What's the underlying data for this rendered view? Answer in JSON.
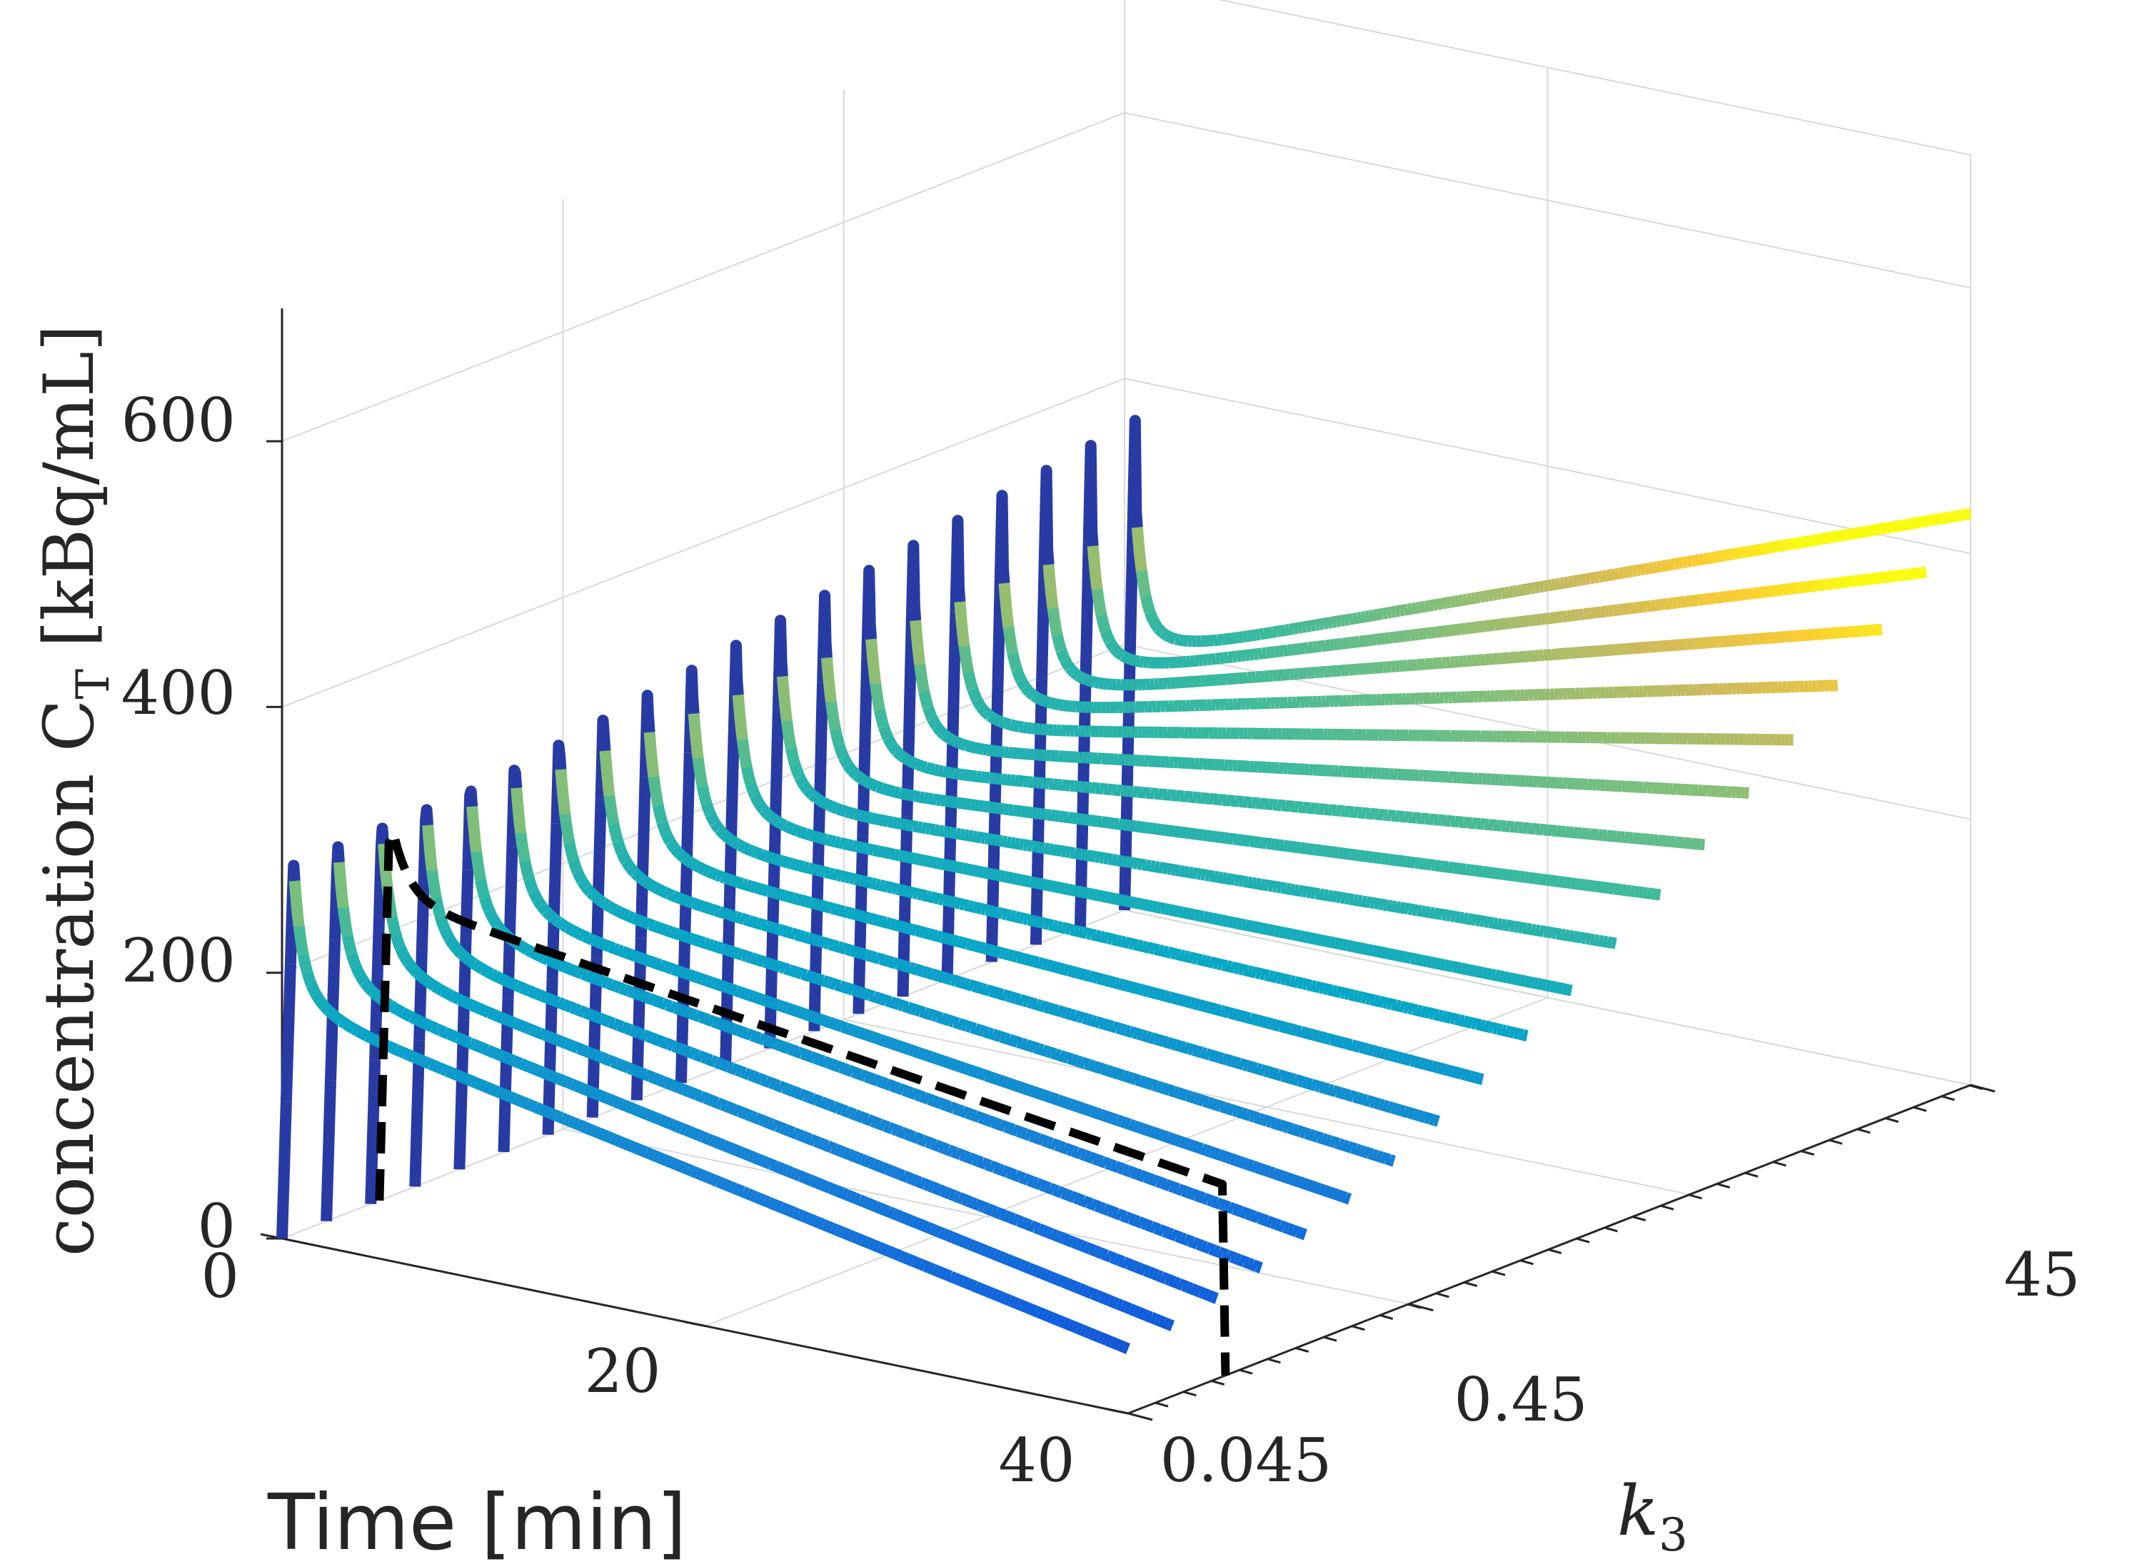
{
  "chart_data": {
    "type": "line",
    "view": "3d-waterfall",
    "ylabel_text": "concentration C",
    "ylabel_sub": "T",
    "ylabel_unit": "[kBq/mL]",
    "xlabel": "Time [min]",
    "k3label": "k",
    "k3label_sub": "3",
    "ticks_y": [
      "0",
      "200",
      "400",
      "600"
    ],
    "ticks_t": [
      "0",
      "20",
      "40"
    ],
    "ticks_k3": [
      "0.045",
      "0.45",
      "45"
    ],
    "zlim": [
      0,
      700
    ],
    "tlim": [
      0,
      40
    ],
    "k3_scale": "log",
    "k3_range": [
      0.045,
      45
    ],
    "grid": true,
    "colormap": "parula",
    "reference_curve": {
      "style": "black-dashed",
      "k3": 0.1
    },
    "series_description": "Tissue concentration time-activity curves for 20 logarithmically spaced k3 values; each curve rises to a bolus peak near t≈0.5 min then decays or accumulates depending on k3."
  },
  "colors": {
    "axis": "#262626",
    "grid": "#d9d9d9",
    "reference": "#000000"
  }
}
